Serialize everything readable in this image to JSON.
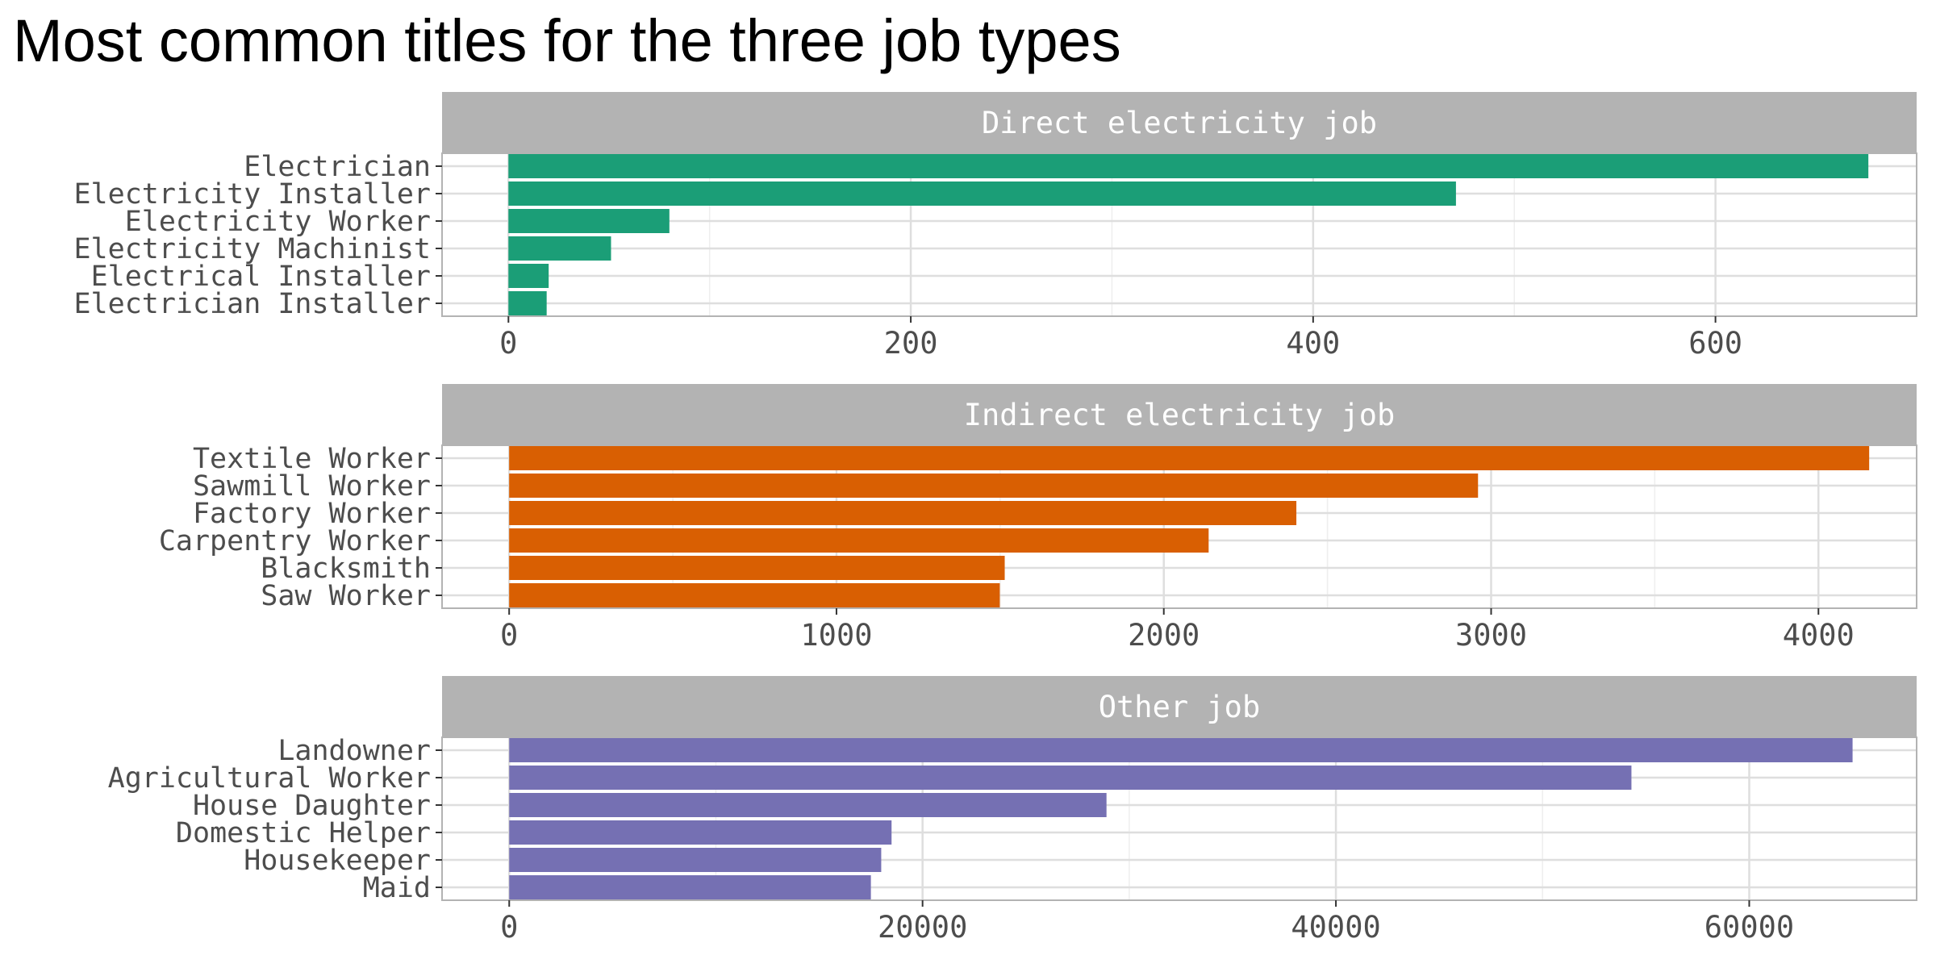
{
  "chart_data": {
    "type": "bar",
    "orientation": "horizontal",
    "title": "Most common titles for the three job types",
    "grid": true,
    "panels": [
      {
        "facet": "Direct electricity job",
        "color": "#1b9e77",
        "xlim": [
          -33,
          700
        ],
        "x_ticks": [
          0,
          200,
          400,
          600
        ],
        "x_tick_labels": [
          "0",
          "200",
          "400",
          "600"
        ],
        "categories": [
          "Electrician",
          "Electricity Installer",
          "Electricity Worker",
          "Electricity Machinist",
          "Electrical Installer",
          "Electrician Installer"
        ],
        "values": [
          676,
          471,
          80,
          51,
          20,
          19
        ]
      },
      {
        "facet": "Indirect electricity job",
        "color": "#d95f02",
        "xlim": [
          -205,
          4300
        ],
        "x_ticks": [
          0,
          1000,
          2000,
          3000,
          4000
        ],
        "x_tick_labels": [
          "0",
          "1000",
          "2000",
          "3000",
          "4000"
        ],
        "categories": [
          "Textile Worker",
          "Sawmill Worker",
          "Factory Worker",
          "Carpentry Worker",
          "Blacksmith",
          "Saw Worker"
        ],
        "values": [
          4155,
          2960,
          2405,
          2137,
          1514,
          1499
        ]
      },
      {
        "facet": "Other job",
        "color": "#7570b3",
        "xlim": [
          -3250,
          68100
        ],
        "x_ticks": [
          0,
          20000,
          40000,
          60000
        ],
        "x_tick_labels": [
          "0",
          "20000",
          "40000",
          "60000"
        ],
        "categories": [
          "Landowner",
          "Agricultural Worker",
          "House Daughter",
          "Domestic Helper",
          "Housekeeper",
          "Maid"
        ],
        "values": [
          65000,
          54300,
          28900,
          18500,
          18000,
          17500
        ]
      }
    ]
  }
}
